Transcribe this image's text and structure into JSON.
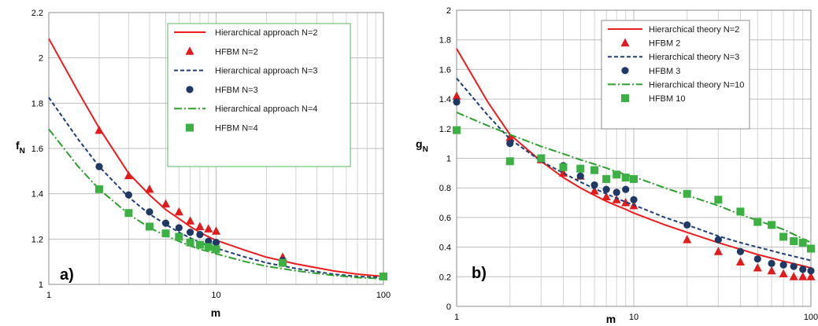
{
  "chart_data": [
    {
      "type": "line",
      "panel_label": "a)",
      "xlabel": "m",
      "ylabel": "f",
      "ylabel_sub": "N",
      "xscale": "log",
      "xlim": [
        1,
        100
      ],
      "ylim": [
        1,
        2.2
      ],
      "x_ticks": [
        1,
        10,
        100
      ],
      "y_ticks": [
        "1",
        "1.2",
        "1.4",
        "1.6",
        "1.8",
        "2",
        "2.2"
      ],
      "grid": true,
      "legend_position": "top-right",
      "series": [
        {
          "name": "Hierarchical approach N=2",
          "kind": "line",
          "style": "solid",
          "color": "#ee1c1c",
          "x": [
            1,
            1.5,
            2,
            3,
            4,
            5,
            6,
            7,
            8,
            9,
            10,
            15,
            20,
            30,
            50,
            70,
            100
          ],
          "y": [
            2.085,
            1.85,
            1.69,
            1.49,
            1.395,
            1.33,
            1.29,
            1.255,
            1.23,
            1.21,
            1.195,
            1.15,
            1.12,
            1.09,
            1.06,
            1.045,
            1.035
          ]
        },
        {
          "name": "HFBM N=2",
          "kind": "marker",
          "marker": "triangle",
          "color": "#e31a1c",
          "x": [
            2,
            3,
            4,
            5,
            6,
            7,
            8,
            9,
            10,
            25,
            100
          ],
          "y": [
            1.68,
            1.48,
            1.42,
            1.355,
            1.32,
            1.28,
            1.255,
            1.245,
            1.235,
            1.12,
            1.035
          ]
        },
        {
          "name": "Hierarchical approach N=3",
          "kind": "line",
          "style": "dashed",
          "color": "#1f3d7a",
          "x": [
            1,
            1.5,
            2,
            3,
            4,
            5,
            6,
            7,
            8,
            9,
            10,
            15,
            20,
            30,
            50,
            70,
            100
          ],
          "y": [
            1.825,
            1.64,
            1.52,
            1.385,
            1.31,
            1.265,
            1.23,
            1.205,
            1.185,
            1.17,
            1.16,
            1.12,
            1.095,
            1.07,
            1.045,
            1.035,
            1.03
          ]
        },
        {
          "name": "HFBM N=3",
          "kind": "marker",
          "marker": "circle",
          "color": "#1f3864",
          "x": [
            2,
            3,
            4,
            5,
            6,
            7,
            8,
            9,
            10,
            25,
            100
          ],
          "y": [
            1.52,
            1.395,
            1.32,
            1.27,
            1.25,
            1.23,
            1.22,
            1.19,
            1.185,
            1.105,
            1.035
          ]
        },
        {
          "name": "Hierarchical approach N=4",
          "kind": "line",
          "style": "dashdot",
          "color": "#2ca02c",
          "x": [
            1,
            1.5,
            2,
            3,
            4,
            5,
            6,
            7,
            8,
            9,
            10,
            15,
            20,
            30,
            50,
            70,
            100
          ],
          "y": [
            1.685,
            1.52,
            1.42,
            1.31,
            1.25,
            1.215,
            1.19,
            1.17,
            1.155,
            1.145,
            1.135,
            1.1,
            1.08,
            1.06,
            1.04,
            1.03,
            1.025
          ]
        },
        {
          "name": "HFBM N=4",
          "kind": "marker",
          "marker": "square",
          "color": "#3cb043",
          "x": [
            2,
            3,
            4,
            5,
            6,
            7,
            8,
            9,
            10,
            25,
            100
          ],
          "y": [
            1.42,
            1.315,
            1.255,
            1.225,
            1.21,
            1.185,
            1.175,
            1.165,
            1.155,
            1.095,
            1.035
          ]
        }
      ]
    },
    {
      "type": "line",
      "panel_label": "b)",
      "xlabel": "m",
      "ylabel": "g",
      "ylabel_sub": "N",
      "xscale": "log",
      "xlim": [
        1,
        100
      ],
      "ylim": [
        0,
        2
      ],
      "x_ticks": [
        1,
        10,
        100
      ],
      "y_ticks": [
        "0",
        "0.2",
        "0.4",
        "0.6",
        "0.8",
        "1",
        "1.2",
        "1.4",
        "1.6",
        "1.8",
        "2"
      ],
      "grid": true,
      "legend_position": "top-right",
      "series": [
        {
          "name": "Hierarchical theory N=2",
          "kind": "line",
          "style": "solid",
          "color": "#ee1c1c",
          "x": [
            1,
            1.5,
            2,
            3,
            4,
            5,
            6,
            7,
            8,
            9,
            10,
            15,
            20,
            30,
            40,
            50,
            70,
            100
          ],
          "y": [
            1.74,
            1.38,
            1.16,
            0.98,
            0.87,
            0.8,
            0.75,
            0.71,
            0.68,
            0.655,
            0.63,
            0.55,
            0.5,
            0.43,
            0.385,
            0.35,
            0.305,
            0.26
          ]
        },
        {
          "name": "HFBM 2",
          "kind": "marker",
          "marker": "triangle",
          "color": "#e31a1c",
          "x": [
            1,
            2,
            3,
            4,
            5,
            6,
            7,
            8,
            9,
            10,
            20,
            30,
            40,
            50,
            60,
            70,
            80,
            90,
            100
          ],
          "y": [
            1.42,
            1.14,
            0.99,
            0.9,
            0.88,
            0.78,
            0.74,
            0.72,
            0.7,
            0.68,
            0.45,
            0.37,
            0.3,
            0.26,
            0.24,
            0.22,
            0.2,
            0.2,
            0.2
          ]
        },
        {
          "name": "Hierarchical theory N=3",
          "kind": "line",
          "style": "dashed",
          "color": "#1f3d7a",
          "x": [
            1,
            1.5,
            2,
            3,
            4,
            5,
            6,
            7,
            8,
            9,
            10,
            15,
            20,
            30,
            40,
            50,
            70,
            100
          ],
          "y": [
            1.54,
            1.29,
            1.13,
            0.98,
            0.9,
            0.84,
            0.795,
            0.76,
            0.73,
            0.705,
            0.685,
            0.6,
            0.55,
            0.475,
            0.43,
            0.4,
            0.355,
            0.31
          ]
        },
        {
          "name": "HFBM 3",
          "kind": "marker",
          "marker": "circle",
          "color": "#1f3864",
          "x": [
            1,
            2,
            3,
            4,
            5,
            6,
            7,
            8,
            9,
            10,
            20,
            30,
            40,
            50,
            60,
            70,
            80,
            90,
            100
          ],
          "y": [
            1.38,
            1.1,
            1.0,
            0.95,
            0.88,
            0.82,
            0.79,
            0.77,
            0.79,
            0.72,
            0.55,
            0.45,
            0.37,
            0.32,
            0.29,
            0.28,
            0.27,
            0.25,
            0.24
          ]
        },
        {
          "name": "Hierarchical theory N=10",
          "kind": "line",
          "style": "dashdot",
          "color": "#2ca02c",
          "x": [
            1,
            1.5,
            2,
            3,
            4,
            5,
            6,
            7,
            8,
            9,
            10,
            15,
            20,
            30,
            40,
            50,
            70,
            100
          ],
          "y": [
            1.31,
            1.22,
            1.16,
            1.08,
            1.03,
            0.99,
            0.96,
            0.935,
            0.91,
            0.89,
            0.875,
            0.8,
            0.75,
            0.68,
            0.62,
            0.58,
            0.52,
            0.43
          ]
        },
        {
          "name": "HFBM 10",
          "kind": "marker",
          "marker": "square",
          "color": "#3cb043",
          "x": [
            1,
            2,
            3,
            4,
            5,
            6,
            7,
            8,
            9,
            10,
            20,
            30,
            40,
            50,
            60,
            70,
            80,
            90,
            100
          ],
          "y": [
            1.19,
            0.98,
            1.0,
            0.94,
            0.93,
            0.92,
            0.86,
            0.89,
            0.87,
            0.86,
            0.76,
            0.72,
            0.64,
            0.57,
            0.55,
            0.47,
            0.44,
            0.43,
            0.39
          ]
        }
      ]
    }
  ]
}
